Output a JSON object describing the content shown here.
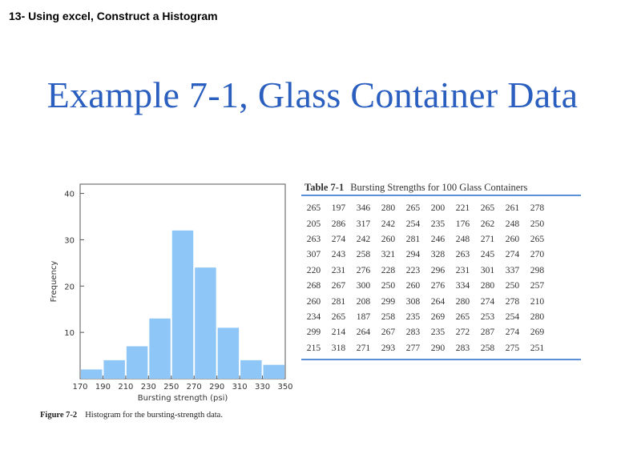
{
  "heading": "13- Using excel, Construct a Histogram",
  "slide_title": "Example 7-1, Glass Container Data",
  "figure": {
    "label": "Figure 7-2",
    "text": "Histogram for the bursting-strength data."
  },
  "table": {
    "label": "Table 7-1",
    "title": "Bursting Strengths for 100 Glass Containers",
    "rows": [
      [
        "265",
        "197",
        "346",
        "280",
        "265",
        "200",
        "221",
        "265",
        "261",
        "278"
      ],
      [
        "205",
        "286",
        "317",
        "242",
        "254",
        "235",
        "176",
        "262",
        "248",
        "250"
      ],
      [
        "263",
        "274",
        "242",
        "260",
        "281",
        "246",
        "248",
        "271",
        "260",
        "265"
      ],
      [
        "307",
        "243",
        "258",
        "321",
        "294",
        "328",
        "263",
        "245",
        "274",
        "270"
      ],
      [
        "220",
        "231",
        "276",
        "228",
        "223",
        "296",
        "231",
        "301",
        "337",
        "298"
      ],
      [
        "268",
        "267",
        "300",
        "250",
        "260",
        "276",
        "334",
        "280",
        "250",
        "257"
      ],
      [
        "260",
        "281",
        "208",
        "299",
        "308",
        "264",
        "280",
        "274",
        "278",
        "210"
      ],
      [
        "234",
        "265",
        "187",
        "258",
        "235",
        "269",
        "265",
        "253",
        "254",
        "280"
      ],
      [
        "299",
        "214",
        "264",
        "267",
        "283",
        "235",
        "272",
        "287",
        "274",
        "269"
      ],
      [
        "215",
        "318",
        "271",
        "293",
        "277",
        "290",
        "283",
        "258",
        "275",
        "251"
      ]
    ]
  },
  "chart_data": {
    "type": "bar",
    "categories": [
      "170-190",
      "190-210",
      "210-230",
      "230-250",
      "250-270",
      "270-290",
      "290-310",
      "310-330",
      "330-350"
    ],
    "values": [
      2,
      4,
      7,
      13,
      32,
      24,
      11,
      4,
      3
    ],
    "x_ticks": [
      "170",
      "190",
      "210",
      "230",
      "250",
      "270",
      "290",
      "310",
      "330",
      "350"
    ],
    "y_ticks": [
      10,
      20,
      30,
      40
    ],
    "xlabel": "Bursting strength (psi)",
    "ylabel": "Frequency",
    "ylim": [
      0,
      42
    ],
    "xlim": [
      170,
      350
    ],
    "grid": false,
    "bar_color": "#8ec7f7"
  },
  "colors": {
    "title": "#2b5fbf",
    "table_rule": "#5b8fd6"
  }
}
